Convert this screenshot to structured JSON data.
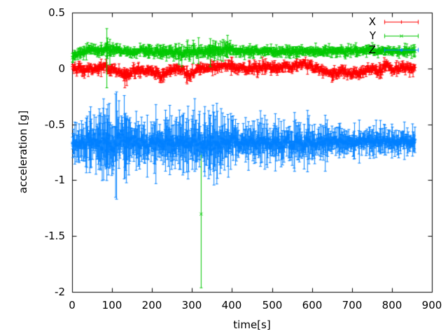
{
  "figure": {
    "background": "#ffffff",
    "axis_color": "#000000",
    "text_color": "#000000"
  },
  "chart_data": {
    "type": "scatter",
    "subtype": "errorbars",
    "xlabel": "time[s]",
    "ylabel": "acceleration [g]",
    "xlim": [
      0,
      900
    ],
    "ylim": [
      -2,
      0.5
    ],
    "grid": false,
    "legend": {
      "position": "top-right-inside",
      "sample_style": "errorbar-with-marker"
    },
    "xticks": {
      "values": [
        0,
        100,
        200,
        300,
        400,
        500,
        600,
        700,
        800,
        900
      ],
      "labels": [
        "0",
        "100",
        "200",
        "300",
        "400",
        "500",
        "600",
        "700",
        "800",
        "900"
      ]
    },
    "yticks": {
      "values": [
        0.5,
        0,
        -0.5,
        -1,
        -1.5,
        -2
      ],
      "labels": [
        "0.5",
        "0",
        "-0.5",
        "-1",
        "-1.5",
        "-2"
      ]
    },
    "sampling": {
      "t_start": 0,
      "t_end": 858,
      "dt": 1.2,
      "seed": 42
    },
    "series": [
      {
        "name": "X",
        "color": "#ff0000",
        "marker": "plus",
        "noise_sd": 0.012,
        "err_base": 0.012,
        "err_rand": 0.022,
        "mean_keypoints": [
          [
            0,
            0.03
          ],
          [
            12,
            0.006
          ],
          [
            30,
            -0.014
          ],
          [
            56,
            0.006
          ],
          [
            82,
            0.012
          ],
          [
            109,
            -0.014
          ],
          [
            131,
            -0.058
          ],
          [
            144,
            -0.033
          ],
          [
            170,
            -0.014
          ],
          [
            196,
            -0.026
          ],
          [
            222,
            -0.064
          ],
          [
            240,
            -0.033
          ],
          [
            261,
            0.006
          ],
          [
            278,
            -0.014
          ],
          [
            296,
            -0.045
          ],
          [
            319,
            0.0
          ],
          [
            345,
            0.01
          ],
          [
            371,
            0.03
          ],
          [
            390,
            0.044
          ],
          [
            415,
            0.006
          ],
          [
            450,
            0.0
          ],
          [
            503,
            0.012
          ],
          [
            555,
            0.019
          ],
          [
            576,
            0.05
          ],
          [
            599,
            0.019
          ],
          [
            625,
            -0.02
          ],
          [
            646,
            -0.045
          ],
          [
            674,
            -0.026
          ],
          [
            700,
            -0.045
          ],
          [
            727,
            -0.02
          ],
          [
            748,
            0.006
          ],
          [
            769,
            -0.033
          ],
          [
            783,
            0.019
          ],
          [
            800,
            -0.008
          ],
          [
            826,
            0.006
          ],
          [
            858,
            0.0
          ]
        ],
        "volatility_keypoints": [
          [
            0,
            1
          ],
          [
            858,
            1
          ]
        ],
        "outlier_errorbars": [
          [
            131,
            -0.09,
            -0.17,
            -0.01
          ],
          [
            136,
            -0.07,
            -0.15,
            0.0
          ]
        ]
      },
      {
        "name": "Y",
        "color": "#00c800",
        "marker": "cross",
        "noise_sd": 0.009,
        "err_base": 0.01,
        "err_rand": 0.02,
        "mean_keypoints": [
          [
            0,
            0.105
          ],
          [
            10,
            0.12
          ],
          [
            25,
            0.15
          ],
          [
            50,
            0.165
          ],
          [
            80,
            0.16
          ],
          [
            110,
            0.17
          ],
          [
            135,
            0.155
          ],
          [
            160,
            0.155
          ],
          [
            190,
            0.16
          ],
          [
            220,
            0.15
          ],
          [
            250,
            0.148
          ],
          [
            280,
            0.145
          ],
          [
            310,
            0.148
          ],
          [
            335,
            0.155
          ],
          [
            355,
            0.15
          ],
          [
            375,
            0.165
          ],
          [
            388,
            0.195
          ],
          [
            400,
            0.165
          ],
          [
            430,
            0.155
          ],
          [
            470,
            0.16
          ],
          [
            510,
            0.152
          ],
          [
            550,
            0.16
          ],
          [
            590,
            0.152
          ],
          [
            630,
            0.158
          ],
          [
            670,
            0.152
          ],
          [
            710,
            0.16
          ],
          [
            745,
            0.168
          ],
          [
            770,
            0.155
          ],
          [
            795,
            0.165
          ],
          [
            820,
            0.158
          ],
          [
            858,
            0.158
          ]
        ],
        "volatility_keypoints": [
          [
            0,
            1
          ],
          [
            78,
            1
          ],
          [
            85,
            1.8
          ],
          [
            95,
            1.8
          ],
          [
            110,
            1
          ],
          [
            330,
            1.5
          ],
          [
            395,
            1.5
          ],
          [
            420,
            1
          ],
          [
            858,
            1
          ]
        ],
        "outlier_errorbars": [
          [
            86,
            0.1,
            -0.17,
            0.36
          ],
          [
            322,
            -1.3,
            -1.96,
            -0.75
          ],
          [
            345,
            0.15,
            0.02,
            0.27
          ],
          [
            388,
            0.2,
            0.1,
            0.3
          ]
        ]
      },
      {
        "name": "Z",
        "color": "#0080ff",
        "marker": "asterisk",
        "noise_sd": 0.022,
        "err_base": 0.03,
        "err_rand": 0.09,
        "mean_keypoints": [
          [
            0,
            -0.662
          ],
          [
            50,
            -0.658
          ],
          [
            100,
            -0.665
          ],
          [
            150,
            -0.658
          ],
          [
            200,
            -0.662
          ],
          [
            250,
            -0.656
          ],
          [
            300,
            -0.662
          ],
          [
            350,
            -0.656
          ],
          [
            400,
            -0.66
          ],
          [
            450,
            -0.655
          ],
          [
            500,
            -0.66
          ],
          [
            550,
            -0.658
          ],
          [
            600,
            -0.66
          ],
          [
            650,
            -0.655
          ],
          [
            700,
            -0.652
          ],
          [
            750,
            -0.65
          ],
          [
            800,
            -0.65
          ],
          [
            858,
            -0.648
          ]
        ],
        "volatility_keypoints": [
          [
            0,
            1
          ],
          [
            60,
            1.3
          ],
          [
            85,
            1.8
          ],
          [
            140,
            1.6
          ],
          [
            165,
            1.1
          ],
          [
            290,
            1.3
          ],
          [
            345,
            1.5
          ],
          [
            400,
            1.1
          ],
          [
            600,
            1.0
          ],
          [
            690,
            0.75
          ],
          [
            858,
            0.7
          ]
        ],
        "outlier_errorbars": [
          [
            47,
            -0.65,
            -0.88,
            -0.45
          ],
          [
            86,
            -0.65,
            -1.0,
            -0.36
          ],
          [
            90,
            -0.66,
            -0.95,
            -0.42
          ],
          [
            135,
            -0.7,
            -1.02,
            -0.45
          ],
          [
            141,
            -0.68,
            -0.95,
            -0.45
          ],
          [
            248,
            -0.64,
            -0.42,
            -0.9
          ],
          [
            300,
            -0.65,
            -0.9,
            -0.42
          ],
          [
            330,
            -0.65,
            -0.92,
            -0.4
          ],
          [
            345,
            -0.66,
            -0.95,
            -0.42
          ],
          [
            390,
            -0.67,
            -0.97,
            -0.45
          ],
          [
            396,
            -0.64,
            -0.9,
            -0.4
          ]
        ]
      }
    ]
  }
}
